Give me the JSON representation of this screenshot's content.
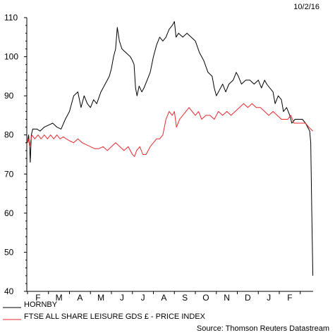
{
  "date_stamp": "10/2/16",
  "source": "Source: Thomson Reuters Datastream",
  "chart_data": {
    "type": "line",
    "title": "",
    "xlabel": "",
    "ylabel": "",
    "ylim": [
      40,
      110
    ],
    "yticks": [
      40,
      50,
      60,
      70,
      80,
      90,
      100,
      110
    ],
    "x_tick_labels": [
      "F",
      "M",
      "A",
      "M",
      "J",
      "J",
      "A",
      "S",
      "O",
      "N",
      "D",
      "J",
      "F"
    ],
    "x_unit": "months since start of Feb 2015",
    "grid": false,
    "legend_position": "bottom-left",
    "series": [
      {
        "name": "HORNBY",
        "color": "#000000",
        "points": [
          [
            0.0,
            78
          ],
          [
            0.05,
            80
          ],
          [
            0.1,
            77
          ],
          [
            0.13,
            73
          ],
          [
            0.18,
            80
          ],
          [
            0.25,
            81.5
          ],
          [
            0.45,
            81.5
          ],
          [
            0.6,
            81
          ],
          [
            0.8,
            82
          ],
          [
            1.0,
            82.5
          ],
          [
            1.2,
            83
          ],
          [
            1.4,
            82
          ],
          [
            1.6,
            81.5
          ],
          [
            1.8,
            84
          ],
          [
            2.0,
            86
          ],
          [
            2.2,
            90
          ],
          [
            2.4,
            91
          ],
          [
            2.55,
            87
          ],
          [
            2.7,
            90
          ],
          [
            2.85,
            88
          ],
          [
            3.0,
            87
          ],
          [
            3.15,
            89
          ],
          [
            3.3,
            88
          ],
          [
            3.5,
            91
          ],
          [
            3.7,
            93
          ],
          [
            3.9,
            95
          ],
          [
            4.0,
            97
          ],
          [
            4.1,
            100
          ],
          [
            4.2,
            102
          ],
          [
            4.28,
            107.5
          ],
          [
            4.38,
            104
          ],
          [
            4.5,
            102
          ],
          [
            4.7,
            101
          ],
          [
            4.9,
            100
          ],
          [
            5.0,
            99
          ],
          [
            5.08,
            98
          ],
          [
            5.15,
            92
          ],
          [
            5.22,
            90
          ],
          [
            5.32,
            92.5
          ],
          [
            5.45,
            91
          ],
          [
            5.55,
            92
          ],
          [
            5.7,
            94
          ],
          [
            5.85,
            96
          ],
          [
            6.0,
            100
          ],
          [
            6.15,
            103
          ],
          [
            6.3,
            105
          ],
          [
            6.45,
            104
          ],
          [
            6.6,
            105
          ],
          [
            6.75,
            107
          ],
          [
            6.9,
            108
          ],
          [
            7.0,
            109
          ],
          [
            7.08,
            105
          ],
          [
            7.2,
            106
          ],
          [
            7.4,
            105
          ],
          [
            7.6,
            106
          ],
          [
            7.8,
            105
          ],
          [
            8.0,
            104
          ],
          [
            8.2,
            101
          ],
          [
            8.4,
            99
          ],
          [
            8.6,
            96
          ],
          [
            8.8,
            95
          ],
          [
            8.9,
            92
          ],
          [
            9.0,
            90
          ],
          [
            9.15,
            91.5
          ],
          [
            9.3,
            93
          ],
          [
            9.45,
            91
          ],
          [
            9.6,
            93
          ],
          [
            9.8,
            94
          ],
          [
            9.95,
            96
          ],
          [
            10.05,
            95
          ],
          [
            10.2,
            93
          ],
          [
            10.4,
            94
          ],
          [
            10.6,
            94
          ],
          [
            10.8,
            93
          ],
          [
            11.0,
            94
          ],
          [
            11.15,
            92
          ],
          [
            11.3,
            94
          ],
          [
            11.4,
            93
          ],
          [
            11.55,
            92
          ],
          [
            11.7,
            91
          ],
          [
            11.8,
            88
          ],
          [
            11.95,
            90
          ],
          [
            12.1,
            89
          ],
          [
            12.2,
            86
          ],
          [
            12.35,
            87
          ],
          [
            12.5,
            85
          ],
          [
            12.6,
            83
          ],
          [
            12.75,
            84
          ],
          [
            12.95,
            84
          ],
          [
            13.1,
            84
          ],
          [
            13.25,
            83
          ],
          [
            13.35,
            82
          ],
          [
            13.45,
            81
          ],
          [
            13.5,
            78
          ],
          [
            13.55,
            60
          ],
          [
            13.6,
            44
          ]
        ]
      },
      {
        "name": "FTSE ALL SHARE LEISURE GDS £ - PRICE INDEX",
        "color": "#e8282d",
        "points": [
          [
            0.0,
            78
          ],
          [
            0.05,
            79
          ],
          [
            0.1,
            77
          ],
          [
            0.15,
            78.5
          ],
          [
            0.2,
            80
          ],
          [
            0.35,
            79
          ],
          [
            0.5,
            80
          ],
          [
            0.65,
            79
          ],
          [
            0.8,
            80
          ],
          [
            0.95,
            79
          ],
          [
            1.1,
            80
          ],
          [
            1.25,
            79
          ],
          [
            1.4,
            80
          ],
          [
            1.55,
            79
          ],
          [
            1.7,
            79.5
          ],
          [
            1.85,
            79
          ],
          [
            2.0,
            78.5
          ],
          [
            2.2,
            78
          ],
          [
            2.4,
            79
          ],
          [
            2.6,
            78
          ],
          [
            2.8,
            77.5
          ],
          [
            3.0,
            77
          ],
          [
            3.2,
            76.5
          ],
          [
            3.4,
            76.5
          ],
          [
            3.6,
            77
          ],
          [
            3.8,
            76
          ],
          [
            4.0,
            77
          ],
          [
            4.2,
            78
          ],
          [
            4.4,
            77
          ],
          [
            4.6,
            76
          ],
          [
            4.8,
            77
          ],
          [
            5.0,
            75
          ],
          [
            5.1,
            74.5
          ],
          [
            5.2,
            76
          ],
          [
            5.35,
            77
          ],
          [
            5.5,
            75
          ],
          [
            5.65,
            75
          ],
          [
            5.85,
            77
          ],
          [
            6.0,
            78
          ],
          [
            6.15,
            79
          ],
          [
            6.3,
            79
          ],
          [
            6.45,
            80
          ],
          [
            6.6,
            84
          ],
          [
            6.75,
            86
          ],
          [
            6.9,
            85
          ],
          [
            7.0,
            86
          ],
          [
            7.1,
            82
          ],
          [
            7.25,
            84
          ],
          [
            7.4,
            85
          ],
          [
            7.55,
            86
          ],
          [
            7.7,
            87
          ],
          [
            7.85,
            86
          ],
          [
            8.0,
            85
          ],
          [
            8.15,
            86
          ],
          [
            8.3,
            84
          ],
          [
            8.5,
            85
          ],
          [
            8.7,
            85
          ],
          [
            8.9,
            84
          ],
          [
            9.1,
            86
          ],
          [
            9.3,
            85
          ],
          [
            9.5,
            86
          ],
          [
            9.7,
            85
          ],
          [
            9.9,
            86
          ],
          [
            10.1,
            87
          ],
          [
            10.3,
            88
          ],
          [
            10.5,
            87
          ],
          [
            10.7,
            88
          ],
          [
            10.9,
            87
          ],
          [
            11.1,
            87
          ],
          [
            11.3,
            86
          ],
          [
            11.5,
            85
          ],
          [
            11.7,
            86
          ],
          [
            11.9,
            85
          ],
          [
            12.1,
            84
          ],
          [
            12.25,
            84
          ],
          [
            12.4,
            84
          ],
          [
            12.55,
            85
          ],
          [
            12.7,
            83
          ],
          [
            12.9,
            83
          ],
          [
            13.1,
            83
          ],
          [
            13.25,
            83
          ],
          [
            13.4,
            82
          ],
          [
            13.6,
            81
          ]
        ]
      }
    ]
  }
}
